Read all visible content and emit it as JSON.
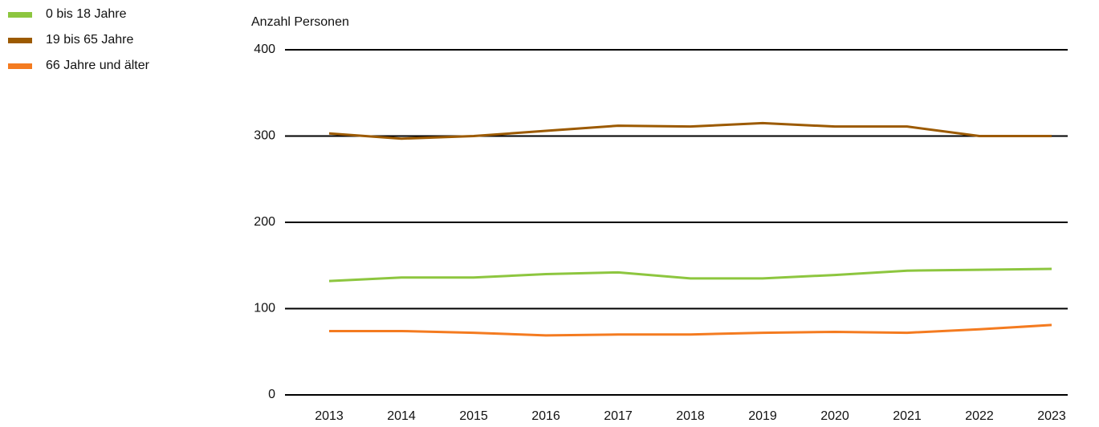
{
  "chart_data": {
    "type": "line",
    "y_label": "Anzahl Personen",
    "categories": [
      "2013",
      "2014",
      "2015",
      "2016",
      "2017",
      "2018",
      "2019",
      "2020",
      "2021",
      "2022",
      "2023"
    ],
    "series": [
      {
        "name": "0 bis 18 Jahre",
        "color": "#8dc63f",
        "values": [
          132,
          136,
          136,
          140,
          142,
          135,
          135,
          139,
          144,
          145,
          146
        ]
      },
      {
        "name": "19 bis 65 Jahre",
        "color": "#9c5a00",
        "values": [
          303,
          297,
          300,
          306,
          312,
          311,
          315,
          311,
          311,
          300,
          300
        ]
      },
      {
        "name": "66 Jahre und älter",
        "color": "#f47b20",
        "values": [
          74,
          74,
          72,
          69,
          70,
          70,
          72,
          73,
          72,
          76,
          81
        ]
      }
    ],
    "ylim": [
      0,
      400
    ],
    "yticks": [
      0,
      100,
      200,
      300,
      400
    ],
    "grid": true,
    "legend": "top-left"
  }
}
